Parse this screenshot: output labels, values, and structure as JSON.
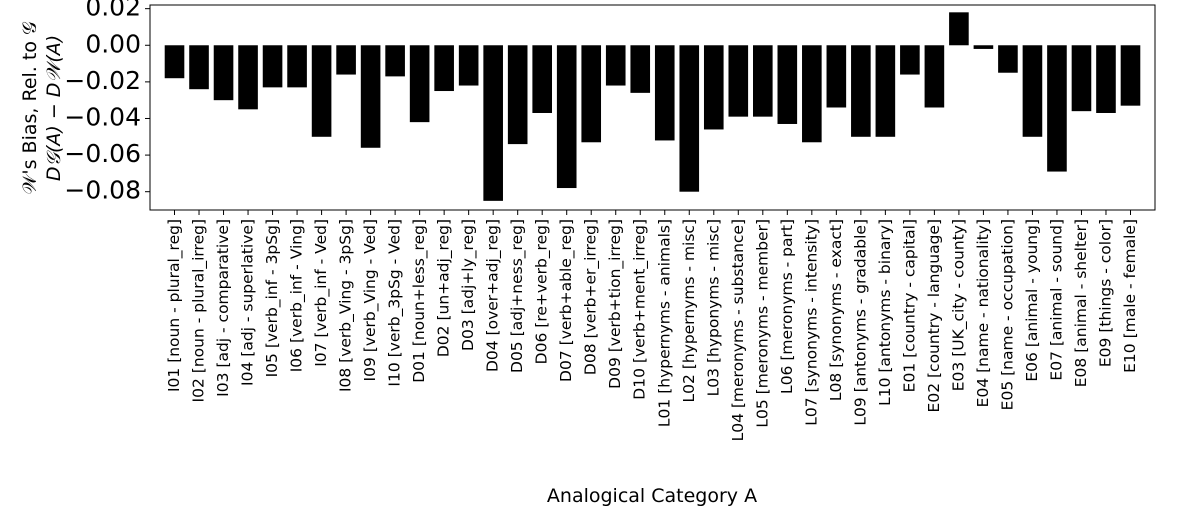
{
  "chart_data": {
    "type": "bar",
    "ylabel_line1": "𝒲's Bias, Rel. to 𝒢",
    "ylabel_line2": "D𝒢(A) − D𝒲(A)",
    "xlabel": "Analogical Category A",
    "ylim": [
      -0.09,
      0.022
    ],
    "yticks": [
      "0.02",
      "0.00",
      "−0.02",
      "−0.04",
      "−0.06",
      "−0.08"
    ],
    "ytick_values": [
      0.02,
      0.0,
      -0.02,
      -0.04,
      -0.06,
      -0.08
    ],
    "bar_color": "#000000",
    "grid": false,
    "categories": [
      "I01 [noun - plural_reg]",
      "I02 [noun - plural_irreg]",
      "I03 [adj - comparative]",
      "I04 [adj - superlative]",
      "I05 [verb_inf - 3pSg]",
      "I06 [verb_inf - Ving]",
      "I07 [verb_inf - Ved]",
      "I08 [verb_Ving - 3pSg]",
      "I09 [verb_Ving - Ved]",
      "I10 [verb_3pSg - Ved]",
      "D01 [noun+less_reg]",
      "D02 [un+adj_reg]",
      "D03 [adj+ly_reg]",
      "D04 [over+adj_reg]",
      "D05 [adj+ness_reg]",
      "D06 [re+verb_reg]",
      "D07 [verb+able_reg]",
      "D08 [verb+er_irreg]",
      "D09 [verb+tion_irreg]",
      "D10 [verb+ment_irreg]",
      "L01 [hypernyms - animals]",
      "L02 [hypernyms - misc]",
      "L03 [hyponyms - misc]",
      "L04 [meronyms - substance]",
      "L05 [meronyms - member]",
      "L06 [meronyms - part]",
      "L07 [synonyms - intensity]",
      "L08 [synonyms - exact]",
      "L09 [antonyms - gradable]",
      "L10 [antonyms - binary]",
      "E01 [country - capital]",
      "E02 [country - language]",
      "E03 [UK_city - county]",
      "E04 [name - nationality]",
      "E05 [name - occupation]",
      "E06 [animal - young]",
      "E07 [animal - sound]",
      "E08 [animal - shelter]",
      "E09 [things - color]",
      "E10 [male - female]"
    ],
    "values": [
      -0.018,
      -0.024,
      -0.03,
      -0.035,
      -0.023,
      -0.023,
      -0.05,
      -0.016,
      -0.056,
      -0.017,
      -0.042,
      -0.025,
      -0.022,
      -0.085,
      -0.054,
      -0.037,
      -0.078,
      -0.053,
      -0.022,
      -0.026,
      -0.052,
      -0.08,
      -0.046,
      -0.039,
      -0.039,
      -0.043,
      -0.053,
      -0.034,
      -0.05,
      -0.05,
      -0.016,
      -0.034,
      0.018,
      -0.002,
      -0.015,
      -0.05,
      -0.069,
      -0.036,
      -0.037,
      -0.033
    ]
  }
}
